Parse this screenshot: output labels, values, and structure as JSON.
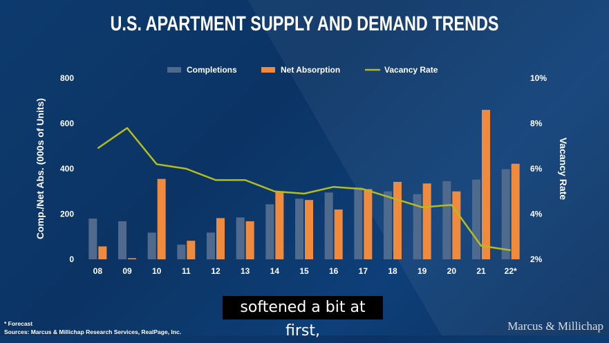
{
  "title": "U.S. APARTMENT SUPPLY AND DEMAND TRENDS",
  "caption": "softened a bit at first,",
  "footnote_forecast": "* Forecast",
  "footnote_sources": "Sources: Marcus & Millichap Research Services, RealPage, Inc.",
  "brand": "Marcus & Millichap",
  "colors": {
    "completions": "#4f6a8c",
    "net_absorption": "#f08a3c",
    "vacancy_rate": "#b5bd1e",
    "background": "#0d3a6e"
  },
  "chart_data": {
    "type": "bar",
    "categories": [
      "08",
      "09",
      "10",
      "11",
      "12",
      "13",
      "14",
      "15",
      "16",
      "17",
      "18",
      "19",
      "20",
      "21",
      "22*"
    ],
    "series": [
      {
        "name": "Completions",
        "type": "bar",
        "axis": "left",
        "values": [
          180,
          168,
          118,
          65,
          118,
          185,
          243,
          268,
          295,
          318,
          300,
          288,
          345,
          352,
          398
        ]
      },
      {
        "name": "Net Absorption",
        "type": "bar",
        "axis": "left",
        "values": [
          57,
          5,
          355,
          82,
          182,
          168,
          298,
          262,
          220,
          310,
          342,
          335,
          300,
          660,
          422
        ]
      },
      {
        "name": "Vacancy Rate",
        "type": "line",
        "axis": "right",
        "values": [
          6.9,
          7.8,
          6.2,
          6.0,
          5.5,
          5.5,
          5.0,
          4.9,
          5.2,
          5.1,
          4.7,
          4.3,
          4.4,
          2.6,
          2.4
        ]
      }
    ],
    "ylabel": "Comp./Net Abs. (000s of Units)",
    "ylabel_right": "Vacancy Rate",
    "ylim": [
      0,
      800
    ],
    "yticks": [
      "0",
      "200",
      "400",
      "600",
      "800"
    ],
    "ylim_right": [
      2,
      10
    ],
    "yticks_right": [
      "2%",
      "4%",
      "6%",
      "8%",
      "10%"
    ],
    "legend": [
      "Completions",
      "Net Absorption",
      "Vacancy Rate"
    ],
    "legend_position": "top",
    "grid": false
  }
}
